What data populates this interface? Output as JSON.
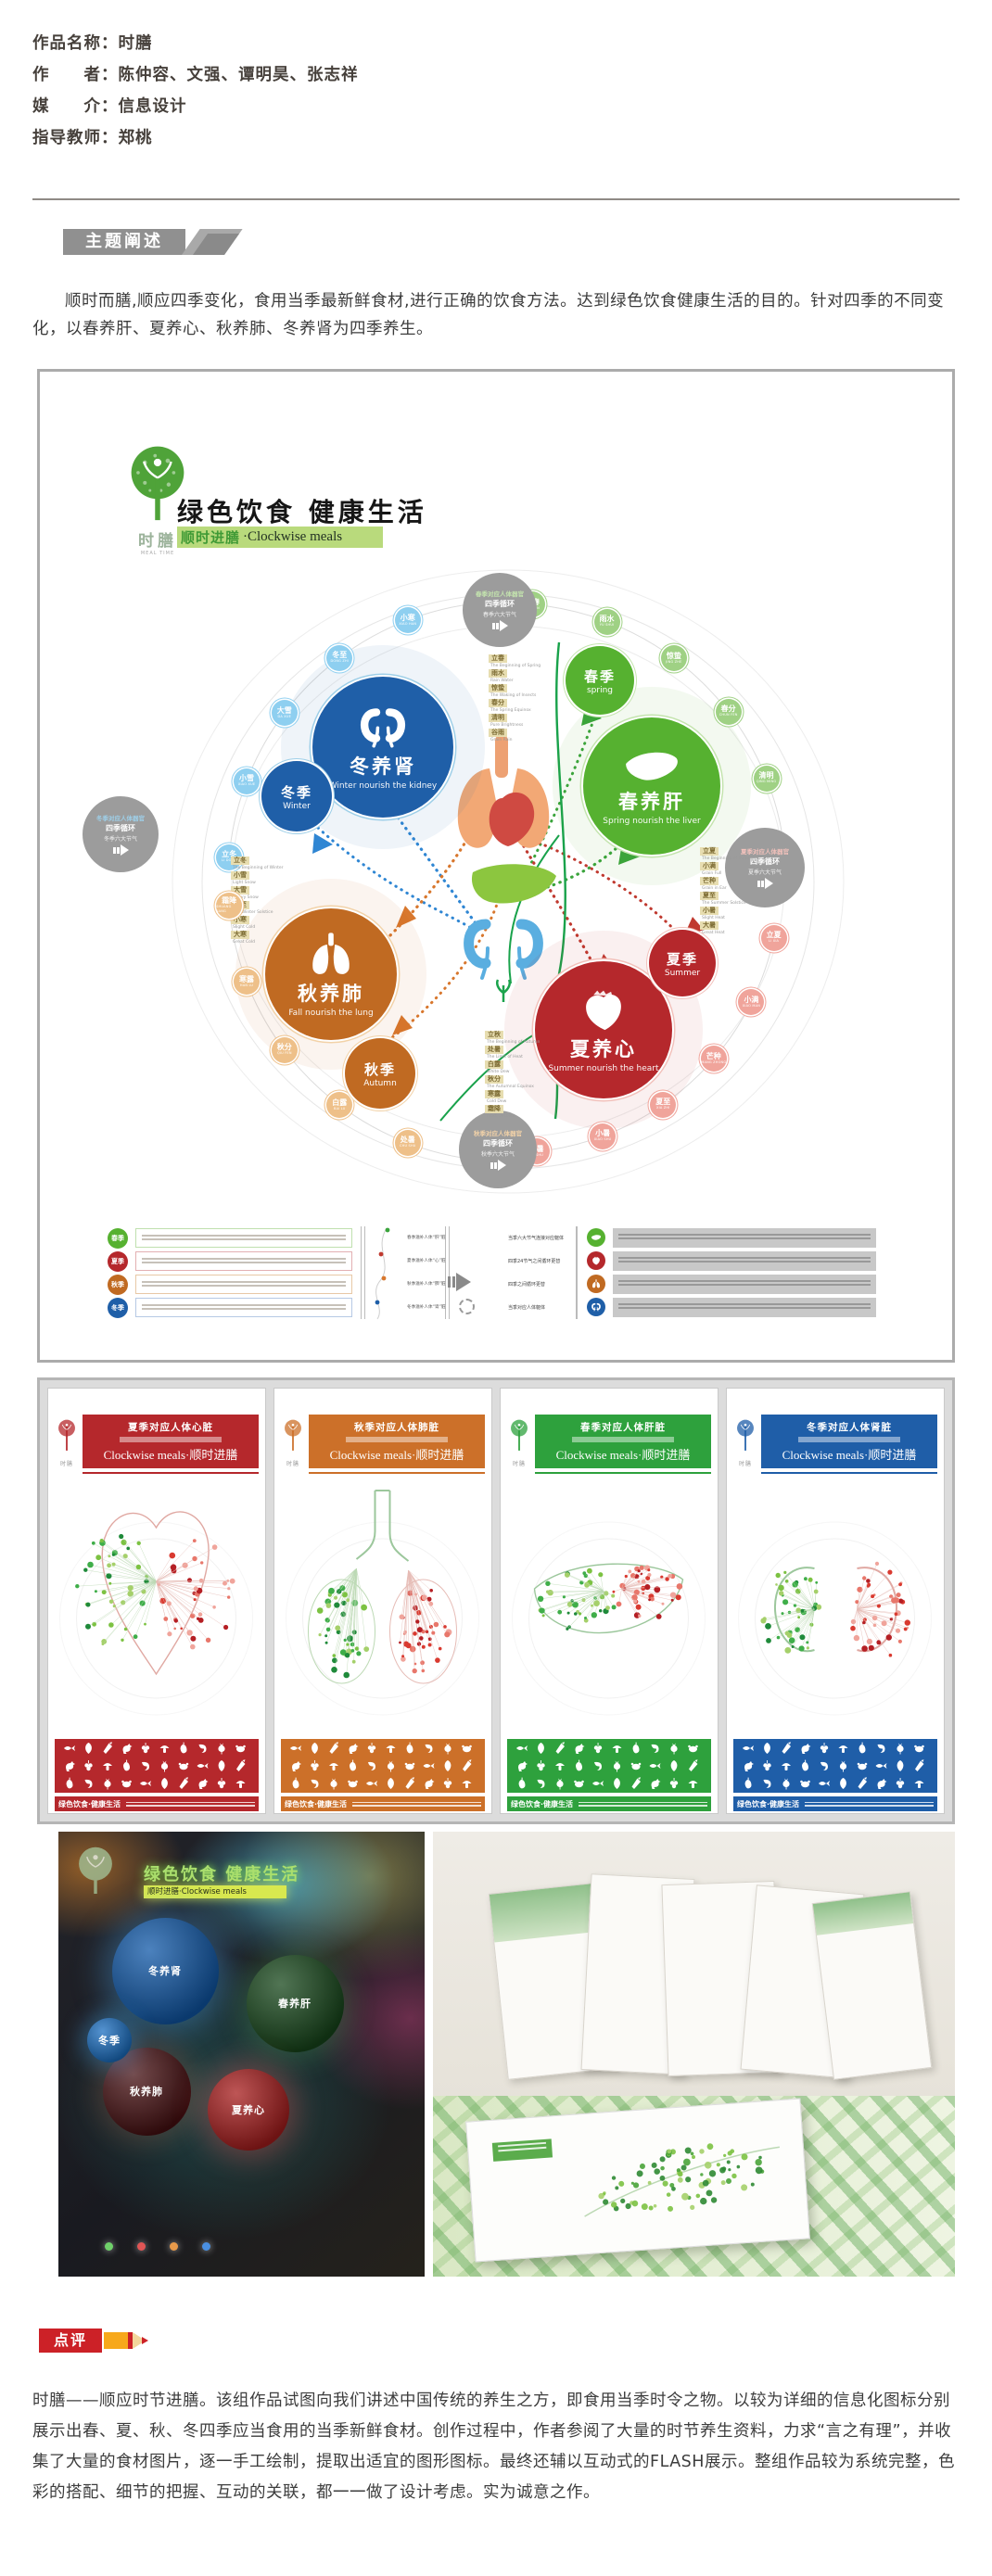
{
  "meta": {
    "rows": [
      "作品名称：时膳",
      "作　　者：陈仲容、文强、谭明昊、张志祥",
      "媒　　介：信息设计",
      "指导教师：郑桃"
    ]
  },
  "theme": {
    "title": "主题阐述",
    "paragraph": "顺时而膳,顺应四季变化，食用当季最新鲜食材,进行正确的饮食方法。达到绿色饮食健康生活的目的。针对四季的不同变化，以春养肝、夏养心、秋养肺、冬养肾为四季养生。"
  },
  "poster": {
    "logo": {
      "name": "时膳",
      "tagline": "MEAL TIME"
    },
    "title": "绿色饮食 健康生活",
    "subtitle_cn": "顺时进膳",
    "subtitle_en": "·Clockwise meals",
    "seasons": [
      {
        "id": "winter",
        "color": "#1f5fa8",
        "node_color": "#8ecff0",
        "line_color": "#9ecfe8",
        "big_cn": "冬养肾",
        "big_en": "Winter nourish the kidney",
        "small_cn": "冬季",
        "small_en": "Winter",
        "organ": "kidney",
        "gray_lines": [
          "冬季对应人体器官",
          "四季循环",
          "冬季六大节气"
        ],
        "terms": [
          {
            "cn": "立冬",
            "py": "LI DONG",
            "en": "The Beginning of Winter"
          },
          {
            "cn": "小雪",
            "py": "XIAO XUE",
            "en": "Light Snow"
          },
          {
            "cn": "大雪",
            "py": "DA XUE",
            "en": "Heavy Snow"
          },
          {
            "cn": "冬至",
            "py": "DONG ZHI",
            "en": "The Winter Solstice"
          },
          {
            "cn": "小寒",
            "py": "XIAO HAN",
            "en": "Slight Cold"
          },
          {
            "cn": "大寒",
            "py": "DA HAN",
            "en": "Great Cold"
          }
        ]
      },
      {
        "id": "spring",
        "color": "#56b130",
        "node_color": "#9fd184",
        "line_color": "#c4e4ae",
        "big_cn": "春养肝",
        "big_en": "Spring nourish the liver",
        "small_cn": "春季",
        "small_en": "spring",
        "organ": "liver",
        "gray_lines": [
          "春季对应人体器官",
          "四季循环",
          "春季六大节气"
        ],
        "terms": [
          {
            "cn": "立春",
            "py": "LI CHUN",
            "en": "The Beginning of Spring"
          },
          {
            "cn": "雨水",
            "py": "YU SHUI",
            "en": "Rain Water"
          },
          {
            "cn": "惊蛰",
            "py": "JING ZHE",
            "en": "The Waking of Insects"
          },
          {
            "cn": "春分",
            "py": "CHUN FEN",
            "en": "The Spring Equinox"
          },
          {
            "cn": "清明",
            "py": "QING MING",
            "en": "Pure Brightness"
          },
          {
            "cn": "谷雨",
            "py": "GU YU",
            "en": "Grain Rain"
          }
        ]
      },
      {
        "id": "summer",
        "color": "#b5282c",
        "node_color": "#f0a49b",
        "line_color": "#f2c1bb",
        "big_cn": "夏养心",
        "big_en": "Summer nourish the heart",
        "small_cn": "夏季",
        "small_en": "Summer",
        "organ": "heart",
        "gray_lines": [
          "夏季对应人体器官",
          "四季循环",
          "夏季六大节气"
        ],
        "terms": [
          {
            "cn": "立夏",
            "py": "LI XIA",
            "en": "The Beginning of Summer"
          },
          {
            "cn": "小满",
            "py": "XIAO MAN",
            "en": "Grain Full"
          },
          {
            "cn": "芒种",
            "py": "MANG ZHONG",
            "en": "Grain in Ear"
          },
          {
            "cn": "夏至",
            "py": "XIA ZHI",
            "en": "The Summer Solstice"
          },
          {
            "cn": "小暑",
            "py": "XIAO SHU",
            "en": "Slight Heat"
          },
          {
            "cn": "大暑",
            "py": "DA SHU",
            "en": "Great Heat"
          }
        ]
      },
      {
        "id": "autumn",
        "color": "#c06a22",
        "node_color": "#eec089",
        "line_color": "#f2d2a8",
        "big_cn": "秋养肺",
        "big_en": "Fall nourish the lung",
        "small_cn": "秋季",
        "small_en": "Autumn",
        "organ": "lung",
        "gray_lines": [
          "秋季对应人体器官",
          "四季循环",
          "秋季六大节气"
        ],
        "terms": [
          {
            "cn": "立秋",
            "py": "LI QIU",
            "en": "The Beginning of Autumn"
          },
          {
            "cn": "处暑",
            "py": "CHU SHU",
            "en": "The Limit of Heat"
          },
          {
            "cn": "白露",
            "py": "BAI LU",
            "en": "White Dew"
          },
          {
            "cn": "秋分",
            "py": "QIU FEN",
            "en": "The Autumnal Equinox"
          },
          {
            "cn": "寒露",
            "py": "HAN LU",
            "en": "Cold Dew"
          },
          {
            "cn": "霜降",
            "py": "SHUANG JIANG",
            "en": "Frost Descent"
          }
        ]
      }
    ],
    "legend": {
      "left_rows": [
        "春季",
        "夏季",
        "秋季",
        "冬季"
      ],
      "mid_labels": [
        "春季滋补人体“肝”脏",
        "夏季滋补人体“心”脏",
        "秋季滋补人体“肺”脏",
        "冬季滋补人体“肾”脏"
      ],
      "flow_labels": [
        "当季六大节气连接对应躯体",
        "四季24节气之间循环更替",
        "四季之间循环更替",
        "当季对应人体躯体"
      ]
    }
  },
  "panels": {
    "subtitle": "Clockwise meals·顺时进膳",
    "footer": "绿色饮食·健康生活",
    "items": [
      {
        "title": "夏季对应人体心脏",
        "organ": "heart",
        "color": "#b5282c"
      },
      {
        "title": "秋季对应人体肺脏",
        "organ": "lung",
        "color": "#cc7029"
      },
      {
        "title": "春季对应人体肝脏",
        "organ": "liver",
        "color": "#2ea13d"
      },
      {
        "title": "冬季对应人体肾脏",
        "organ": "kidney",
        "color": "#1f5ea8"
      }
    ]
  },
  "photos": {
    "left": {
      "title": "绿色饮食 健康生活",
      "band": "顺时进膳·Clockwise meals",
      "circles": [
        "冬养肾",
        "春养肝",
        "秋养肺",
        "夏养心",
        "冬季"
      ]
    }
  },
  "comment": {
    "title": "点评",
    "text": "时膳——顺应时节进膳。该组作品试图向我们讲述中国传统的养生之方，即食用当季时令之物。以较为详细的信息化图标分别展示出春、夏、秋、冬四季应当食用的当季新鲜食材。创作过程中，作者参阅了大量的时节养生资料，力求“言之有理”，并收集了大量的食材图片，逐一手工绘制，提取出适宜的图形图标。最终还辅以互动式的FLASH展示。整组作品较为系统完整，色彩的搭配、细节的把握、互动的关联，都一一做了设计考虑。实为诚意之作。"
  }
}
